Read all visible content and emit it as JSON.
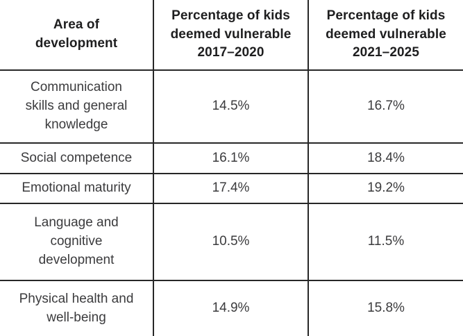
{
  "table": {
    "columns": [
      {
        "label": "Area of\ndevelopment"
      },
      {
        "label": "Percentage of kids\ndeemed vulnerable\n2017–2020"
      },
      {
        "label": "Percentage of kids\ndeemed vulnerable\n2021–2025"
      }
    ],
    "rows": [
      {
        "area": "Communication\nskills and general\nknowledge",
        "pct_2017_2020": "14.5%",
        "pct_2021_2025": "16.7%"
      },
      {
        "area": "Social competence",
        "pct_2017_2020": "16.1%",
        "pct_2021_2025": "18.4%"
      },
      {
        "area": "Emotional maturity",
        "pct_2017_2020": "17.4%",
        "pct_2021_2025": "19.2%"
      },
      {
        "area": "Language and\ncognitive\ndevelopment",
        "pct_2017_2020": "10.5%",
        "pct_2021_2025": "11.5%"
      },
      {
        "area": "Physical health and\nwell-being",
        "pct_2017_2020": "14.9%",
        "pct_2021_2025": "15.8%"
      }
    ]
  },
  "chart_data": {
    "type": "table",
    "title": "",
    "columns": [
      "Area of development",
      "Percentage of kids deemed vulnerable 2017–2020",
      "Percentage of kids deemed vulnerable 2021–2025"
    ],
    "rows": [
      [
        "Communication skills and general knowledge",
        "14.5%",
        "16.7%"
      ],
      [
        "Social competence",
        "16.1%",
        "18.4%"
      ],
      [
        "Emotional maturity",
        "17.4%",
        "19.2%"
      ],
      [
        "Language and cognitive development",
        "10.5%",
        "11.5%"
      ],
      [
        "Physical health and well-being",
        "14.9%",
        "15.8%"
      ]
    ],
    "series": [
      {
        "name": "Percentage of kids deemed vulnerable 2017–2020",
        "values": [
          14.5,
          16.1,
          17.4,
          10.5,
          14.9
        ]
      },
      {
        "name": "Percentage of kids deemed vulnerable 2021–2025",
        "values": [
          16.7,
          18.4,
          19.2,
          11.5,
          15.8
        ]
      }
    ],
    "categories": [
      "Communication skills and general knowledge",
      "Social competence",
      "Emotional maturity",
      "Language and cognitive development",
      "Physical health and well-being"
    ],
    "colors": {
      "border": "#272727",
      "header_text": "#1e1e1f",
      "body_text": "#3b3b3d",
      "background": "#ffffff"
    }
  }
}
